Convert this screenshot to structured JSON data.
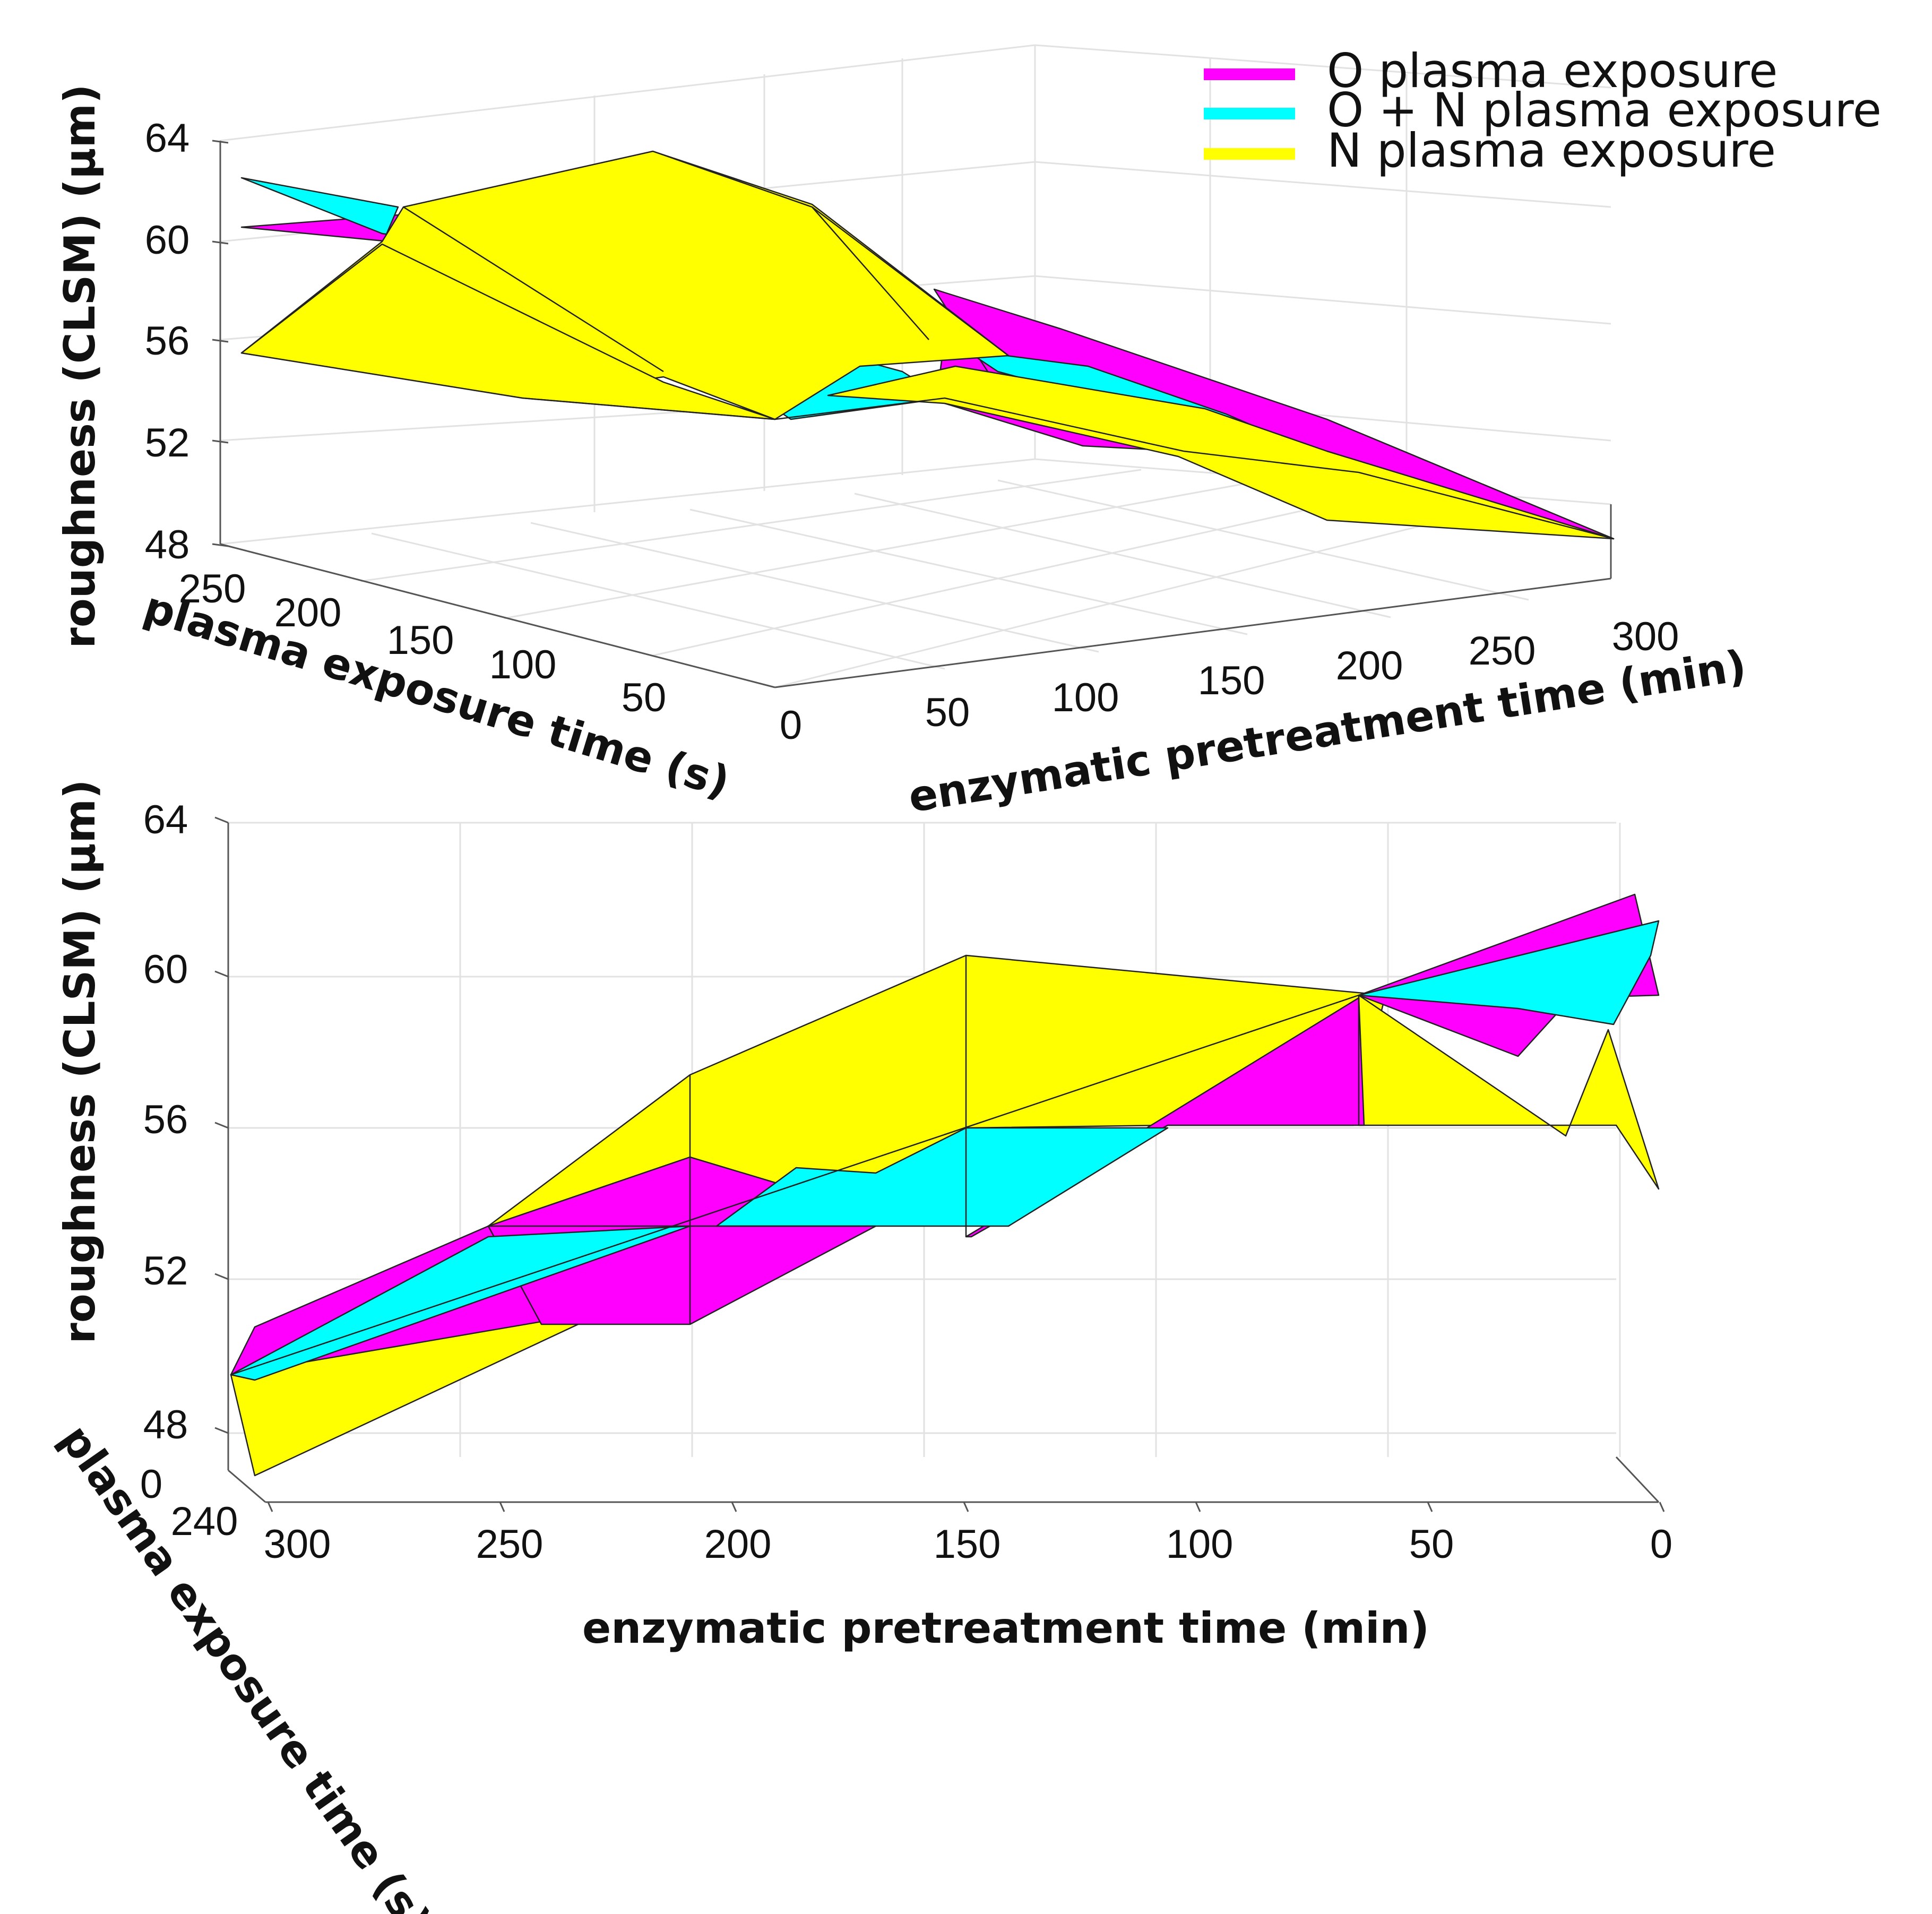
{
  "chart_data": [
    {
      "type": "surface3d",
      "view": "upper",
      "zlabel": "roughness (CLSM) (µm)",
      "xlabel": "enzymatic pretreatment time (min)",
      "ylabel": "plasma exposure time (s)",
      "zlim": [
        48,
        64
      ],
      "z_ticks": [
        "64",
        "60",
        "56",
        "52",
        "48"
      ],
      "x_ticks": [
        "0",
        "50",
        "100",
        "150",
        "200",
        "250",
        "300"
      ],
      "y_ticks": [
        "250",
        "200",
        "150",
        "100",
        "50"
      ],
      "legend": [
        {
          "name": "O plasma exposure",
          "color": "#ff00ff"
        },
        {
          "name": "O + N plasma exposure",
          "color": "#00ffff"
        },
        {
          "name": "N plasma exposure",
          "color": "#ffff00"
        }
      ]
    },
    {
      "type": "surface3d",
      "view": "lower",
      "zlabel": "roughness (CLSM) (µm)",
      "xlabel": "enzymatic pretreatment time (min)",
      "ylabel": "plasma exposure time (s)",
      "zlim": [
        48,
        64
      ],
      "z_ticks": [
        "64",
        "60",
        "56",
        "52",
        "48"
      ],
      "x_ticks": [
        "300",
        "250",
        "200",
        "150",
        "100",
        "50",
        "0"
      ],
      "y_ticks": [
        "0",
        "240"
      ],
      "series_colors": {
        "O": "#ff00ff",
        "ON": "#00ffff",
        "N": "#ffff00"
      }
    }
  ]
}
